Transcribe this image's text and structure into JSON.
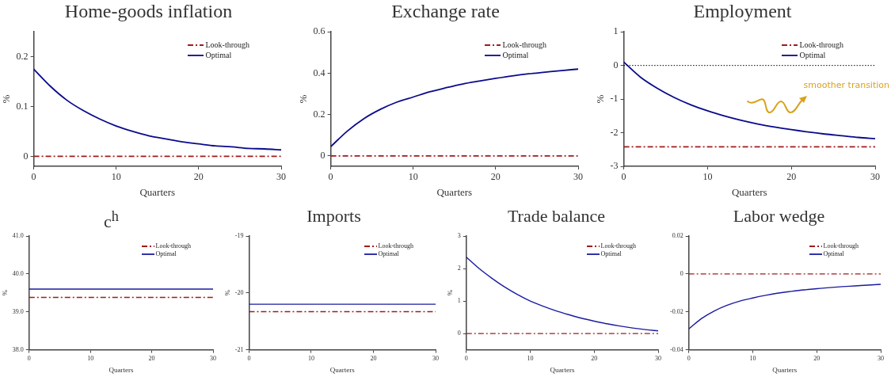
{
  "chart_data": [
    {
      "type": "line",
      "title": "Home-goods inflation",
      "xlabel": "Quarters",
      "ylabel": "%",
      "x": [
        0,
        2,
        4,
        6,
        8,
        10,
        12,
        14,
        16,
        18,
        20,
        22,
        24,
        26,
        28,
        30
      ],
      "xlim": [
        0,
        30
      ],
      "xticks": [
        0,
        10,
        20,
        30
      ],
      "ylim": [
        -0.02,
        0.25
      ],
      "yticks": [
        0,
        0.1,
        0.2
      ],
      "legend": "top right",
      "series": [
        {
          "name": "Look-through",
          "color": "#a01c1c",
          "line_style": "dashed",
          "values": [
            0,
            0,
            0,
            0,
            0,
            0,
            0,
            0,
            0,
            0,
            0,
            0,
            0,
            0,
            0,
            0
          ]
        },
        {
          "name": "Optimal",
          "color": "#0a0a8c",
          "line_style": "solid",
          "values": [
            0.175,
            0.141,
            0.113,
            0.092,
            0.075,
            0.061,
            0.05,
            0.041,
            0.035,
            0.029,
            0.025,
            0.021,
            0.019,
            0.016,
            0.015,
            0.013
          ]
        }
      ]
    },
    {
      "type": "line",
      "title": "Exchange rate",
      "xlabel": "Quarters",
      "ylabel": "%",
      "x": [
        0,
        2,
        4,
        6,
        8,
        10,
        12,
        14,
        16,
        18,
        20,
        22,
        24,
        26,
        28,
        30
      ],
      "xlim": [
        0,
        30
      ],
      "xticks": [
        0,
        10,
        20,
        30
      ],
      "ylim": [
        -0.05,
        0.6
      ],
      "yticks": [
        0,
        0.2,
        0.4,
        0.6
      ],
      "legend": "top right",
      "series": [
        {
          "name": "Look-through",
          "color": "#a01c1c",
          "line_style": "dashed",
          "values": [
            0,
            0,
            0,
            0,
            0,
            0,
            0,
            0,
            0,
            0,
            0,
            0,
            0,
            0,
            0,
            0
          ]
        },
        {
          "name": "Optimal",
          "color": "#0a0a8c",
          "line_style": "solid",
          "values": [
            0.045,
            0.12,
            0.18,
            0.225,
            0.26,
            0.285,
            0.31,
            0.33,
            0.348,
            0.362,
            0.375,
            0.387,
            0.397,
            0.405,
            0.413,
            0.42
          ]
        }
      ]
    },
    {
      "type": "line",
      "title": "Employment",
      "xlabel": "Quarters",
      "ylabel": "%",
      "x": [
        0,
        2,
        4,
        6,
        8,
        10,
        12,
        14,
        16,
        18,
        20,
        22,
        24,
        26,
        28,
        30
      ],
      "xlim": [
        0,
        30
      ],
      "xticks": [
        0,
        10,
        20,
        30
      ],
      "ylim": [
        -3,
        1
      ],
      "yticks": [
        -3,
        -2,
        -1,
        0,
        1
      ],
      "legend": "top right",
      "ref_lines": [
        {
          "axis": "y",
          "value": 0,
          "color": "#000000",
          "line_style": "dotted"
        }
      ],
      "annotations": [
        "smoother transition"
      ],
      "series": [
        {
          "name": "Look-through",
          "color": "#a01c1c",
          "line_style": "dashed",
          "values": [
            -2.42,
            -2.42,
            -2.42,
            -2.42,
            -2.42,
            -2.42,
            -2.42,
            -2.42,
            -2.42,
            -2.42,
            -2.42,
            -2.42,
            -2.42,
            -2.42,
            -2.42,
            -2.42
          ]
        },
        {
          "name": "Optimal",
          "color": "#0a0a8c",
          "line_style": "solid",
          "values": [
            0.1,
            -0.35,
            -0.68,
            -0.95,
            -1.17,
            -1.35,
            -1.5,
            -1.63,
            -1.74,
            -1.83,
            -1.91,
            -1.98,
            -2.04,
            -2.09,
            -2.14,
            -2.18
          ]
        }
      ]
    },
    {
      "type": "line",
      "title": "c$^{h}$",
      "xlabel": "Quarters",
      "ylabel": "%",
      "x": [
        0,
        30
      ],
      "xlim": [
        0,
        30
      ],
      "xticks": [
        0,
        10,
        20,
        30
      ],
      "ylim": [
        38,
        41
      ],
      "yticks": [
        {
          "value": 38,
          "label": "38.0"
        },
        {
          "value": 39,
          "label": "39.0"
        },
        {
          "value": 40,
          "label": "40.0"
        },
        {
          "value": 41,
          "label": "41.0"
        }
      ],
      "legend": "top right",
      "series": [
        {
          "name": "Look-through",
          "color": "#a01c1c",
          "line_style": "dashed",
          "values": [
            39.38,
            39.38
          ]
        },
        {
          "name": "Optimal",
          "color": "#1a1aa0",
          "line_style": "solid",
          "values": [
            39.6,
            39.6
          ]
        }
      ]
    },
    {
      "type": "line",
      "title": "Imports",
      "xlabel": "Quarters",
      "ylabel": "%",
      "x": [
        0,
        30
      ],
      "xlim": [
        0,
        30
      ],
      "xticks": [
        0,
        10,
        20,
        30
      ],
      "ylim": [
        -21,
        -19
      ],
      "yticks": [
        -21,
        -20,
        -19
      ],
      "legend": "top right",
      "series": [
        {
          "name": "Look-through",
          "color": "#a01c1c",
          "line_style": "dashed",
          "values": [
            -20.33,
            -20.33
          ]
        },
        {
          "name": "Optimal",
          "color": "#1a1aa0",
          "line_style": "solid",
          "values": [
            -20.2,
            -20.2
          ]
        }
      ]
    },
    {
      "type": "line",
      "title": "Trade balance",
      "xlabel": "Quarters",
      "ylabel": "%",
      "x": [
        0,
        2,
        4,
        6,
        8,
        10,
        12,
        14,
        16,
        18,
        20,
        22,
        24,
        26,
        28,
        30
      ],
      "xlim": [
        0,
        30
      ],
      "xticks": [
        0,
        10,
        20,
        30
      ],
      "ylim": [
        -0.5,
        3
      ],
      "yticks": [
        0,
        1,
        2,
        3
      ],
      "legend": "top right",
      "series": [
        {
          "name": "Look-through",
          "color": "#a01c1c",
          "line_style": "dashed",
          "values": [
            0,
            0,
            0,
            0,
            0,
            0,
            0,
            0,
            0,
            0,
            0,
            0,
            0,
            0,
            0,
            0
          ]
        },
        {
          "name": "Optimal",
          "color": "#1a1aa0",
          "line_style": "solid",
          "values": [
            2.35,
            2.0,
            1.7,
            1.43,
            1.2,
            1.0,
            0.84,
            0.7,
            0.58,
            0.47,
            0.38,
            0.3,
            0.23,
            0.17,
            0.12,
            0.08
          ]
        }
      ]
    },
    {
      "type": "line",
      "title": "Labor wedge",
      "xlabel": "Quarters",
      "x": [
        0,
        2,
        4,
        6,
        8,
        10,
        12,
        14,
        16,
        18,
        20,
        22,
        24,
        26,
        28,
        30
      ],
      "xlim": [
        0,
        30
      ],
      "xticks": [
        0,
        10,
        20,
        30
      ],
      "ylim": [
        -0.04,
        0.02
      ],
      "yticks": [
        -0.04,
        -0.02,
        0,
        0.02
      ],
      "legend": "top right",
      "series": [
        {
          "name": "Look-through",
          "color": "#a01c1c",
          "line_style": "dashed",
          "values": [
            0,
            0,
            0,
            0,
            0,
            0,
            0,
            0,
            0,
            0,
            0,
            0,
            0,
            0,
            0,
            0
          ]
        },
        {
          "name": "Optimal",
          "color": "#1a1aa0",
          "line_style": "solid",
          "values": [
            -0.029,
            -0.0235,
            -0.0195,
            -0.0165,
            -0.0143,
            -0.0127,
            -0.0113,
            -0.0101,
            -0.0092,
            -0.0084,
            -0.0078,
            -0.0072,
            -0.0067,
            -0.0063,
            -0.0059,
            -0.0055
          ]
        }
      ]
    }
  ]
}
